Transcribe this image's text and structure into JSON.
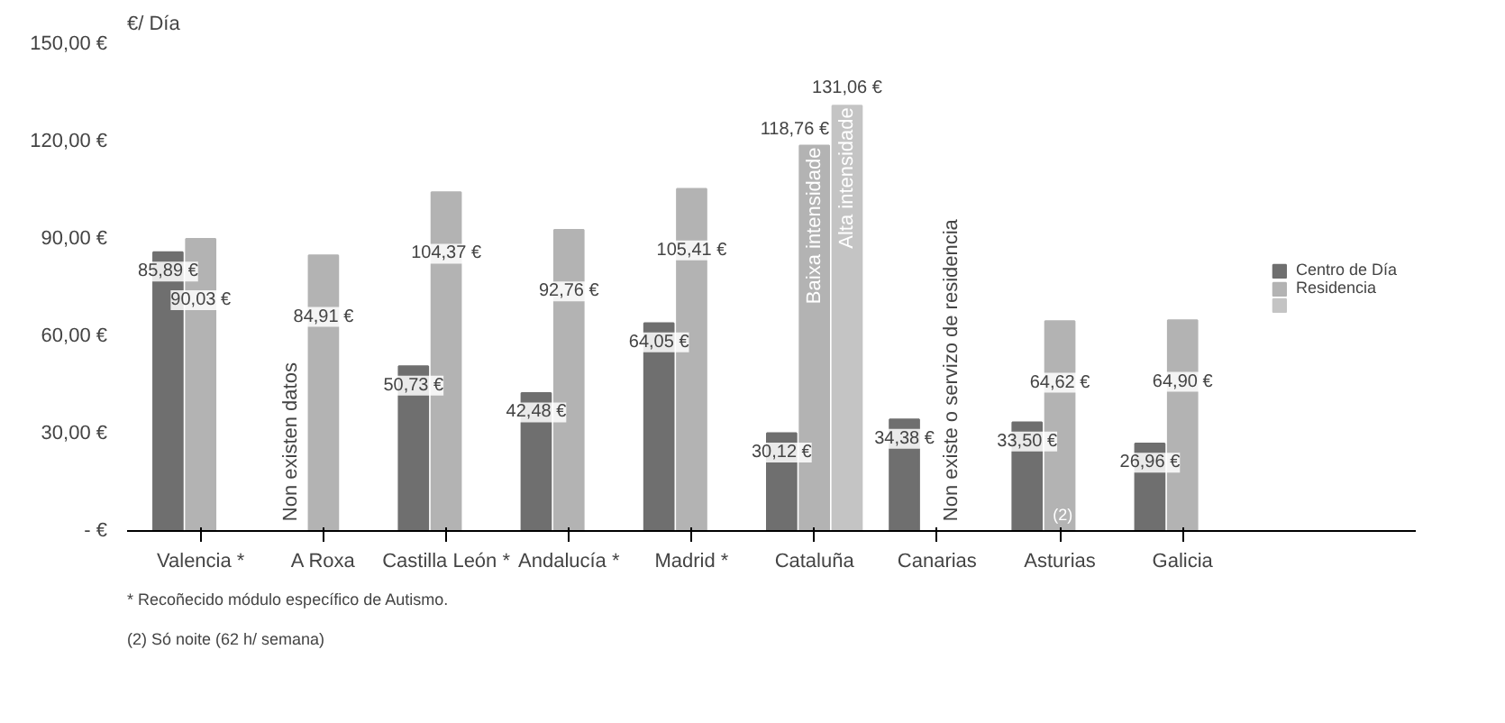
{
  "chart_data": {
    "type": "bar",
    "ylabel": "€/ Día",
    "categories": [
      "Valencia *",
      "A Roxa",
      "Castilla León *",
      "Andalucía *",
      "Madrid *",
      "Cataluña",
      "Canarias",
      "Asturias",
      "Galicia"
    ],
    "series": [
      {
        "name": "Centro de Día",
        "color": "#6f6f6f",
        "values": [
          85.89,
          null,
          50.73,
          42.48,
          64.05,
          30.12,
          34.38,
          33.5,
          26.96
        ],
        "value_labels": [
          "85,89 €",
          null,
          "50,73 €",
          "42,48 €",
          "64,05 €",
          "30,12 €",
          "34,38 €",
          "33,50 €",
          "26,96 €"
        ]
      },
      {
        "name": "Residencia",
        "color": "#b3b3b3",
        "values": [
          90.03,
          84.91,
          104.37,
          92.76,
          105.41,
          118.76,
          null,
          64.62,
          64.9
        ],
        "value_labels": [
          "90,03 €",
          "84,91 €",
          "104,37 €",
          "92,76 €",
          "105,41 €",
          "118,76 €",
          null,
          "64,62 €",
          "64,90 €"
        ]
      },
      {
        "color": "#c4c4c4",
        "values": [
          null,
          null,
          null,
          null,
          null,
          131.06,
          null,
          null,
          null
        ],
        "value_labels": [
          null,
          null,
          null,
          null,
          null,
          "131,06 €",
          null,
          null,
          null
        ]
      }
    ],
    "ylim": [
      0,
      150
    ],
    "yticks": [
      {
        "value": 0,
        "label": "- €"
      },
      {
        "value": 30,
        "label": "30,00 €"
      },
      {
        "value": 60,
        "label": "60,00 €"
      },
      {
        "value": 90,
        "label": "90,00 €"
      },
      {
        "value": 120,
        "label": "120,00 €"
      },
      {
        "value": 150,
        "label": "150,00 €"
      }
    ],
    "grid": false,
    "legend": "right",
    "annotations": [
      "Non existen datos",
      {
        "text": "Baixa intensidade",
        "x": "Cataluña",
        "y": 118.76
      },
      "Non existe o servizo de residencia",
      "Alta intensidade",
      {
        "text": "(2)",
        "x": "Asturias",
        "y": 0
      },
      "* Recoñecido módulo específico de Autismo.",
      "(2) Só noite (62 h/ semana)"
    ]
  }
}
